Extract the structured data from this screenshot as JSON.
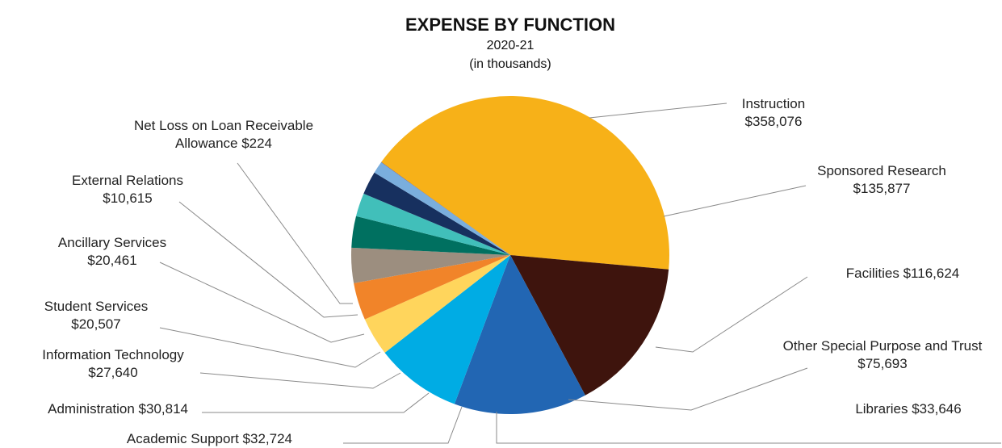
{
  "chart_data": {
    "type": "pie",
    "title": "EXPENSE BY FUNCTION",
    "subtitle_lines": [
      "2020-21",
      "(in thousands)"
    ],
    "slices": [
      {
        "key": "instruction",
        "name": "Instruction",
        "value": 358076,
        "value_label": "$358,076",
        "color": "#F7B118",
        "label_lines": [
          "Instruction",
          "$358,076"
        ]
      },
      {
        "key": "sponsored-research",
        "name": "Sponsored Research",
        "value": 135877,
        "value_label": "$135,877",
        "color": "#3E140D",
        "label_lines": [
          "Sponsored Research",
          "$135,877"
        ]
      },
      {
        "key": "facilities",
        "name": "Facilities",
        "value": 116624,
        "value_label": "$116,624",
        "color": "#2266B3",
        "label_lines": [
          "Facilities $116,624"
        ]
      },
      {
        "key": "other-special-purpose-and-trust",
        "name": "Other Special Purpose and Trust",
        "value": 75693,
        "value_label": "$75,693",
        "color": "#00ACE4",
        "label_lines": [
          "Other Special Purpose and Trust",
          "$75,693"
        ]
      },
      {
        "key": "libraries",
        "name": "Libraries",
        "value": 33646,
        "value_label": "$33,646",
        "color": "#FFD55C",
        "label_lines": [
          "Libraries $33,646"
        ]
      },
      {
        "key": "academic-support",
        "name": "Academic Support",
        "value": 32724,
        "value_label": "$32,724",
        "color": "#F18429",
        "label_lines": [
          "Academic Support $32,724"
        ]
      },
      {
        "key": "administration",
        "name": "Administration",
        "value": 30814,
        "value_label": "$30,814",
        "color": "#9C8E7F",
        "label_lines": [
          "Administration $30,814"
        ]
      },
      {
        "key": "information-technology",
        "name": "Information Technology",
        "value": 27640,
        "value_label": "$27,640",
        "color": "#007060",
        "label_lines": [
          "Information Technology",
          "$27,640"
        ]
      },
      {
        "key": "student-services",
        "name": "Student Services",
        "value": 20507,
        "value_label": "$20,507",
        "color": "#41BFBA",
        "label_lines": [
          "Student Services",
          "$20,507"
        ]
      },
      {
        "key": "ancillary-services",
        "name": "Ancillary Services",
        "value": 20461,
        "value_label": "$20,461",
        "color": "#17305F",
        "label_lines": [
          "Ancillary Services",
          "$20,461"
        ]
      },
      {
        "key": "external-relations",
        "name": "External Relations",
        "value": 10615,
        "value_label": "$10,615",
        "color": "#7AAEDD",
        "label_lines": [
          "External Relations",
          "$10,615"
        ]
      },
      {
        "key": "net-loss-on-loan-receivable-allowance",
        "name": "Net Loss on Loan Receivable Allowance",
        "value": 224,
        "value_label": "$224",
        "color": "#3A2A7A",
        "label_lines": [
          "Net Loss on Loan Receivable",
          "Allowance $224"
        ]
      }
    ]
  }
}
